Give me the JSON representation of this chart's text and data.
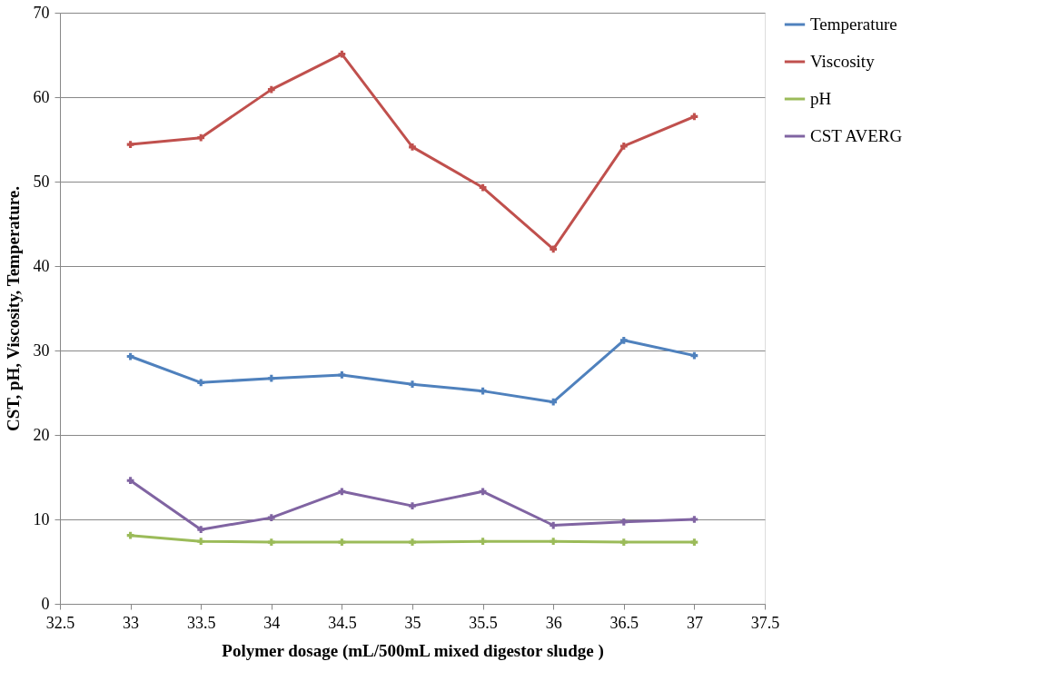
{
  "chart_data": {
    "type": "line",
    "xlabel": "Polymer dosage (mL/500mL mixed digestor sludge )",
    "ylabel": "CST, pH, Viscosity, Temperature.",
    "x": [
      33,
      33.5,
      34,
      34.5,
      35,
      35.5,
      36,
      36.5,
      37
    ],
    "series": [
      {
        "name": "Temperature",
        "color": "#4f81bd",
        "values": [
          29.3,
          26.2,
          26.7,
          27.1,
          26.0,
          25.2,
          23.9,
          31.2,
          29.4
        ]
      },
      {
        "name": "Viscosity",
        "color": "#c0504d",
        "values": [
          54.4,
          55.2,
          60.9,
          65.1,
          54.1,
          49.3,
          42.0,
          54.2,
          57.7
        ]
      },
      {
        "name": "pH",
        "color": "#9bbb59",
        "values": [
          8.1,
          7.4,
          7.3,
          7.3,
          7.3,
          7.4,
          7.4,
          7.3,
          7.3
        ]
      },
      {
        "name": "CST AVERG",
        "color": "#8064a2",
        "values": [
          14.6,
          8.8,
          10.2,
          13.3,
          11.6,
          13.3,
          9.3,
          9.7,
          10.0
        ]
      }
    ],
    "xlim": [
      32.5,
      37.5
    ],
    "xticks": [
      32.5,
      33,
      33.5,
      34,
      34.5,
      35,
      35.5,
      36,
      36.5,
      37,
      37.5
    ],
    "ylim": [
      0,
      70
    ],
    "yticks": [
      0,
      10,
      20,
      30,
      40,
      50,
      60,
      70
    ],
    "grid": "y",
    "legend": "right",
    "marker": "cross",
    "line_style": "solid"
  }
}
